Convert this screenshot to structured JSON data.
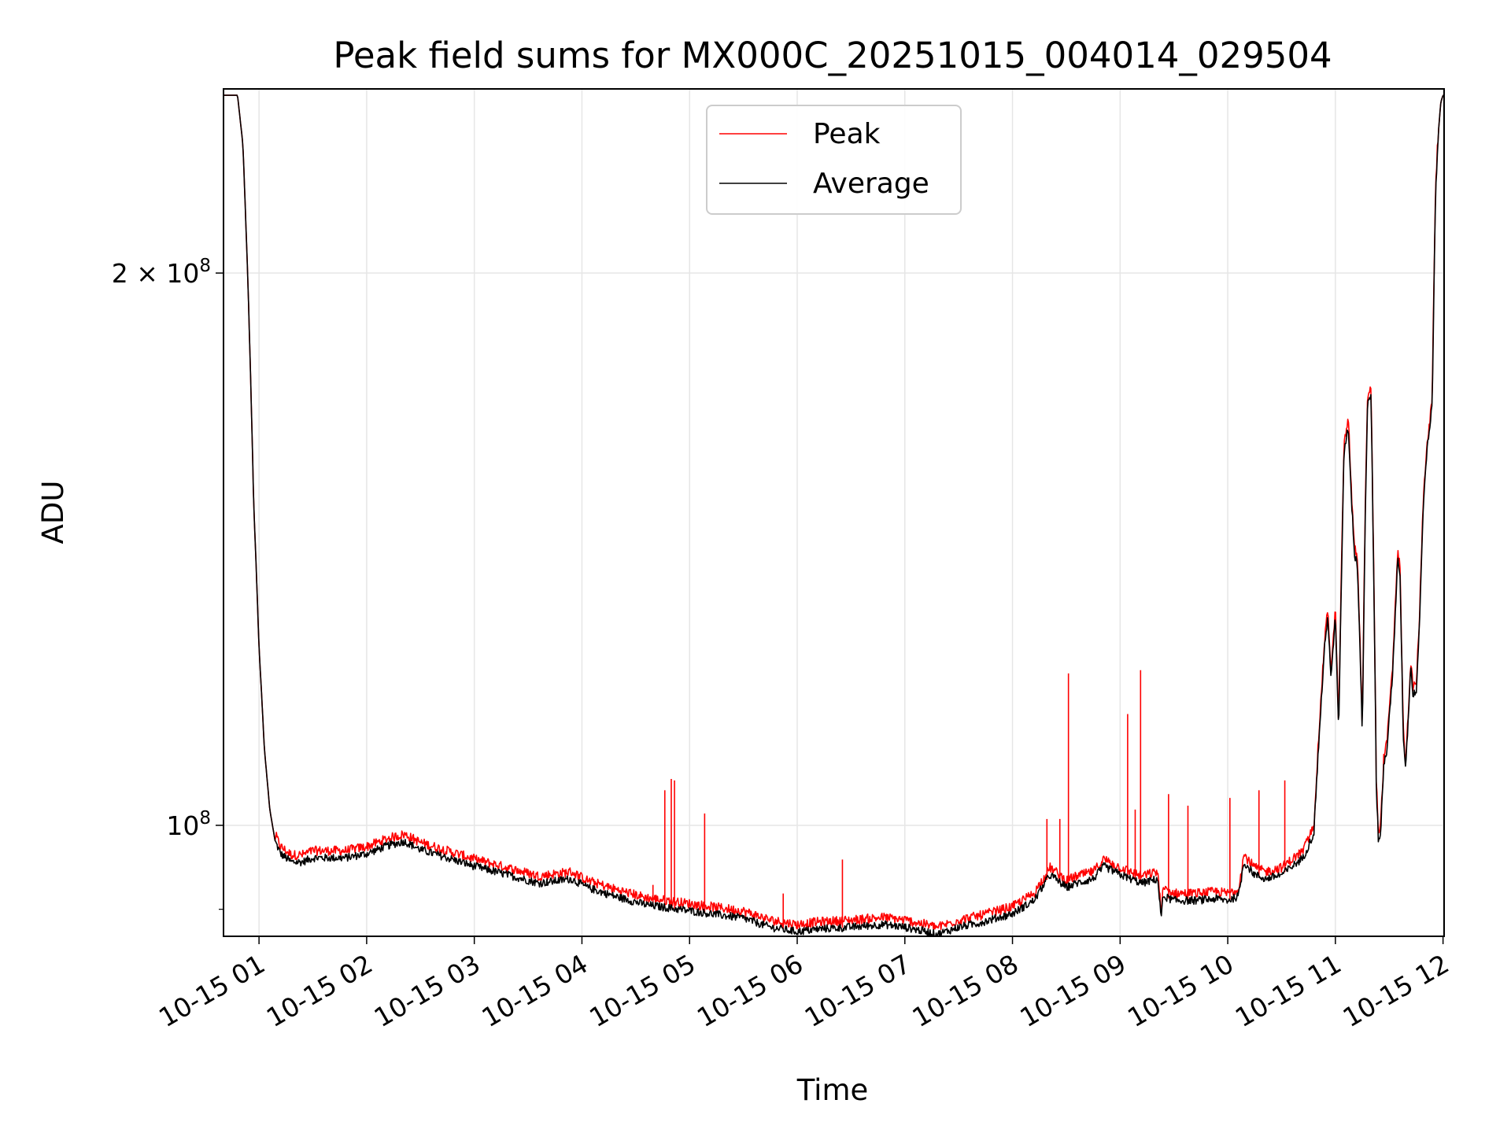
{
  "chart_data": {
    "type": "line",
    "title": "Peak field sums for MX000C_20251015_004014_029504",
    "xlabel": "Time",
    "ylabel": "ADU",
    "yscale": "log",
    "grid": true,
    "legend_position": "top-center",
    "x_unit": "hours since 10-15 00:00",
    "xlim": [
      0.67,
      12.01
    ],
    "ylim": [
      87000000,
      252000000
    ],
    "x_ticks": [
      {
        "value": 1,
        "label": "10-15 01"
      },
      {
        "value": 2,
        "label": "10-15 02"
      },
      {
        "value": 3,
        "label": "10-15 03"
      },
      {
        "value": 4,
        "label": "10-15 04"
      },
      {
        "value": 5,
        "label": "10-15 05"
      },
      {
        "value": 6,
        "label": "10-15 06"
      },
      {
        "value": 7,
        "label": "10-15 07"
      },
      {
        "value": 8,
        "label": "10-15 08"
      },
      {
        "value": 9,
        "label": "10-15 09"
      },
      {
        "value": 10,
        "label": "10-15 10"
      },
      {
        "value": 11,
        "label": "10-15 11"
      },
      {
        "value": 12,
        "label": "10-15 12"
      }
    ],
    "y_major_ticks": [
      {
        "value": 100000000,
        "base": "10",
        "exp": "8",
        "prefix": ""
      },
      {
        "value": 200000000,
        "base": "10",
        "exp": "8",
        "prefix": "2 × "
      }
    ],
    "y_minor_ticks": [
      90000000
    ],
    "colors": {
      "peak": "#ff0000",
      "average": "#000000",
      "grid": "#e6e6e6"
    },
    "series": [
      {
        "name": "Average",
        "color": "#000000",
        "x": [
          0.67,
          0.8,
          0.85,
          0.9,
          0.95,
          1.0,
          1.05,
          1.1,
          1.15,
          1.2,
          1.25,
          1.3,
          1.4,
          1.5,
          1.6,
          1.8,
          2.0,
          2.2,
          2.35,
          2.5,
          2.75,
          3.0,
          3.3,
          3.6,
          3.9,
          4.05,
          4.3,
          4.6,
          4.9,
          5.2,
          5.5,
          5.75,
          6.0,
          6.2,
          6.5,
          6.8,
          7.0,
          7.2,
          7.3,
          7.5,
          7.7,
          8.0,
          8.2,
          8.35,
          8.5,
          8.6,
          8.75,
          8.85,
          9.0,
          9.2,
          9.35,
          9.38,
          9.4,
          9.5,
          9.7,
          9.9,
          10.0,
          10.1,
          10.15,
          10.25,
          10.35,
          10.5,
          10.6,
          10.7,
          10.8,
          10.85,
          10.9,
          10.93,
          10.96,
          11.0,
          11.03,
          11.06,
          11.08,
          11.12,
          11.15,
          11.18,
          11.2,
          11.22,
          11.25,
          11.28,
          11.3,
          11.33,
          11.35,
          11.38,
          11.4,
          11.42,
          11.45,
          11.48,
          11.5,
          11.53,
          11.55,
          11.58,
          11.6,
          11.63,
          11.65,
          11.68,
          11.7,
          11.72,
          11.75,
          11.78,
          11.8,
          11.82,
          11.85,
          11.88,
          11.9,
          11.93,
          11.96,
          11.98,
          12.0,
          12.01
        ],
        "values": [
          250000000,
          250000000,
          235000000,
          195000000,
          150000000,
          125000000,
          110000000,
          102000000,
          98000000,
          96500000,
          96000000,
          95500000,
          95500000,
          96000000,
          96000000,
          96000000,
          96500000,
          97500000,
          98000000,
          97000000,
          96000000,
          95000000,
          94000000,
          93000000,
          93500000,
          92500000,
          91500000,
          90500000,
          90000000,
          89500000,
          89000000,
          88000000,
          87500000,
          87800000,
          88000000,
          88300000,
          88000000,
          87500000,
          87200000,
          88000000,
          88500000,
          89500000,
          91000000,
          94000000,
          92500000,
          93000000,
          93500000,
          95000000,
          94000000,
          93000000,
          93500000,
          89000000,
          91500000,
          91000000,
          91000000,
          91200000,
          91000000,
          91500000,
          95500000,
          94000000,
          93500000,
          94000000,
          95000000,
          96000000,
          99000000,
          112000000,
          125000000,
          130000000,
          120000000,
          130000000,
          112000000,
          140000000,
          160000000,
          165000000,
          150000000,
          140000000,
          140000000,
          130000000,
          112000000,
          150000000,
          170000000,
          172000000,
          145000000,
          105000000,
          98000000,
          99000000,
          108000000,
          110000000,
          115000000,
          120000000,
          128000000,
          140000000,
          137000000,
          112000000,
          107000000,
          115000000,
          122000000,
          118000000,
          118000000,
          128000000,
          140000000,
          150000000,
          160000000,
          165000000,
          170000000,
          220000000,
          240000000,
          248000000,
          250000000,
          250000000
        ]
      },
      {
        "name": "Peak",
        "color": "#ff0000",
        "spikes": [
          {
            "x": 4.77,
            "value": 104500000
          },
          {
            "x": 4.83,
            "value": 106000000
          },
          {
            "x": 4.86,
            "value": 105800000
          },
          {
            "x": 5.14,
            "value": 101500000
          },
          {
            "x": 4.66,
            "value": 92800000
          },
          {
            "x": 5.87,
            "value": 91800000
          },
          {
            "x": 6.42,
            "value": 95800000
          },
          {
            "x": 8.32,
            "value": 100800000
          },
          {
            "x": 8.44,
            "value": 100800000
          },
          {
            "x": 8.52,
            "value": 121000000
          },
          {
            "x": 9.07,
            "value": 115000000
          },
          {
            "x": 9.14,
            "value": 102000000
          },
          {
            "x": 9.19,
            "value": 121500000
          },
          {
            "x": 9.45,
            "value": 104000000
          },
          {
            "x": 9.63,
            "value": 102500000
          },
          {
            "x": 10.02,
            "value": 103500000
          },
          {
            "x": 10.29,
            "value": 104500000
          },
          {
            "x": 10.53,
            "value": 105800000
          }
        ]
      }
    ]
  }
}
